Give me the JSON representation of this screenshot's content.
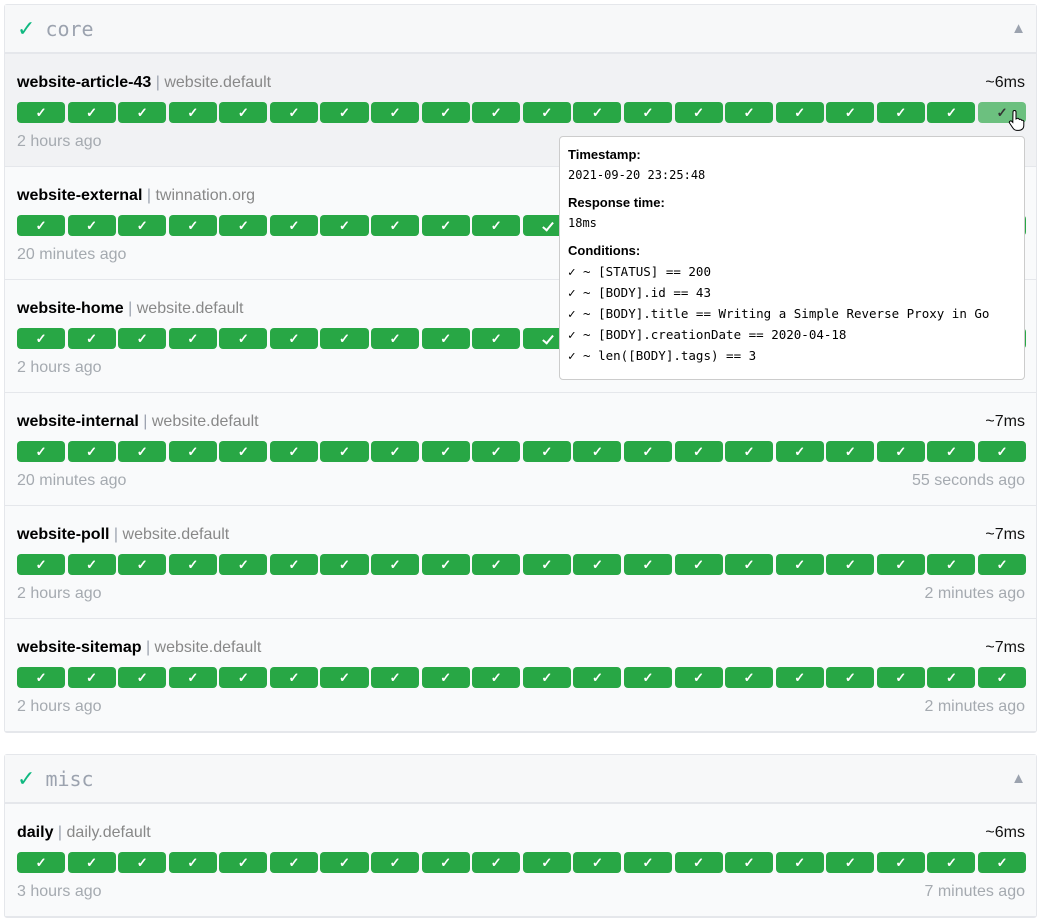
{
  "groups": [
    {
      "name": "core",
      "status_icon": "check",
      "collapse_icon": "triangle-up",
      "endpoints": [
        {
          "name": "website-article-43",
          "group": "website.default",
          "response_time": "~6ms",
          "oldest": "2 hours ago",
          "newest": "",
          "results": [
            "ok",
            "ok",
            "ok",
            "ok",
            "ok",
            "ok",
            "ok",
            "ok",
            "ok",
            "ok",
            "ok",
            "ok",
            "ok",
            "ok",
            "ok",
            "ok",
            "ok",
            "ok",
            "ok",
            "ok-hover"
          ]
        },
        {
          "name": "website-external",
          "group": "twinnation.org",
          "response_time": "",
          "oldest": "20 minutes ago",
          "newest": "",
          "results": [
            "ok",
            "ok",
            "ok",
            "ok",
            "ok",
            "ok",
            "ok",
            "ok",
            "ok",
            "ok",
            "ok",
            "ok",
            "ok",
            "ok",
            "ok",
            "ok",
            "ok",
            "ok",
            "ok",
            "ok"
          ]
        },
        {
          "name": "website-home",
          "group": "website.default",
          "response_time": "",
          "oldest": "2 hours ago",
          "newest": "",
          "results": [
            "ok",
            "ok",
            "ok",
            "ok",
            "ok",
            "ok",
            "ok",
            "ok",
            "ok",
            "ok",
            "ok",
            "ok",
            "ok",
            "ok",
            "ok",
            "ok",
            "ok",
            "ok",
            "ok",
            "ok"
          ]
        },
        {
          "name": "website-internal",
          "group": "website.default",
          "response_time": "~7ms",
          "oldest": "20 minutes ago",
          "newest": "55 seconds ago",
          "results": [
            "ok",
            "ok",
            "ok",
            "ok",
            "ok",
            "ok",
            "ok",
            "ok",
            "ok",
            "ok",
            "ok",
            "ok",
            "ok",
            "ok",
            "ok",
            "ok",
            "ok",
            "ok",
            "ok",
            "ok"
          ]
        },
        {
          "name": "website-poll",
          "group": "website.default",
          "response_time": "~7ms",
          "oldest": "2 hours ago",
          "newest": "2 minutes ago",
          "results": [
            "ok",
            "ok",
            "ok",
            "ok",
            "ok",
            "ok",
            "ok",
            "ok",
            "ok",
            "ok",
            "ok",
            "ok",
            "ok",
            "ok",
            "ok",
            "ok",
            "ok",
            "ok",
            "ok",
            "ok"
          ]
        },
        {
          "name": "website-sitemap",
          "group": "website.default",
          "response_time": "~7ms",
          "oldest": "2 hours ago",
          "newest": "2 minutes ago",
          "results": [
            "ok",
            "ok",
            "ok",
            "ok",
            "ok",
            "ok",
            "ok",
            "ok",
            "ok",
            "ok",
            "ok",
            "ok",
            "ok",
            "ok",
            "ok",
            "ok",
            "ok",
            "ok",
            "ok",
            "ok"
          ]
        }
      ]
    },
    {
      "name": "misc",
      "status_icon": "check",
      "collapse_icon": "triangle-up",
      "endpoints": [
        {
          "name": "daily",
          "group": "daily.default",
          "response_time": "~6ms",
          "oldest": "3 hours ago",
          "newest": "7 minutes ago",
          "results": [
            "ok",
            "ok",
            "ok",
            "ok",
            "ok",
            "ok",
            "ok",
            "ok",
            "ok",
            "ok",
            "ok",
            "ok",
            "ok",
            "ok",
            "ok",
            "ok",
            "ok",
            "ok",
            "ok",
            "ok"
          ]
        }
      ]
    }
  ],
  "symbols": {
    "check": "✓",
    "collapse": "▲",
    "separator": "|",
    "bar_check": "✓"
  },
  "tooltip": {
    "timestamp_label": "Timestamp:",
    "timestamp": "2021-09-20 23:25:48",
    "response_label": "Response time:",
    "response": "18ms",
    "conditions_label": "Conditions:",
    "conditions": [
      "✓ ~ [STATUS] == 200",
      "✓ ~ [BODY].id == 43",
      "✓ ~ [BODY].title == Writing a Simple Reverse Proxy in Go",
      "✓ ~ [BODY].creationDate == 2020-04-18",
      "✓ ~ len([BODY].tags) == 3"
    ]
  },
  "colors": {
    "success": "#28a745",
    "success_hover": "#6cc07f",
    "group_check": "#10b981"
  }
}
